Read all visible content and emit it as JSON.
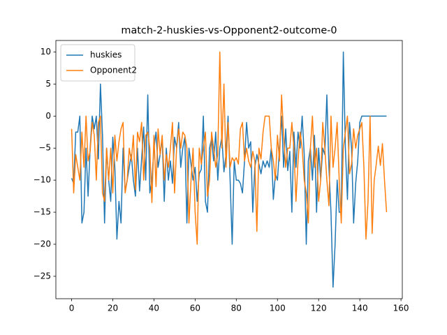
{
  "chart_data": {
    "type": "line",
    "title": "match-2-huskies-vs-Opponent2-outcome-0",
    "x": [
      0,
      1,
      2,
      3,
      4,
      5,
      6,
      7,
      8,
      9,
      10,
      11,
      12,
      13,
      14,
      15,
      16,
      17,
      18,
      19,
      20,
      21,
      22,
      23,
      24,
      25,
      26,
      27,
      28,
      29,
      30,
      31,
      32,
      33,
      34,
      35,
      36,
      37,
      38,
      39,
      40,
      41,
      42,
      43,
      44,
      45,
      46,
      47,
      48,
      49,
      50,
      51,
      52,
      53,
      54,
      55,
      56,
      57,
      58,
      59,
      60,
      61,
      62,
      63,
      64,
      65,
      66,
      67,
      68,
      69,
      70,
      71,
      72,
      73,
      74,
      75,
      76,
      77,
      78,
      79,
      80,
      81,
      82,
      83,
      84,
      85,
      86,
      87,
      88,
      89,
      90,
      91,
      92,
      93,
      94,
      95,
      96,
      97,
      98,
      99,
      100,
      101,
      102,
      103,
      104,
      105,
      106,
      107,
      108,
      109,
      110,
      111,
      112,
      113,
      114,
      115,
      116,
      117,
      118,
      119,
      120,
      121,
      122,
      123,
      124,
      125,
      126,
      127,
      128,
      129,
      130,
      131,
      132,
      133,
      134,
      135,
      136,
      137,
      138,
      139,
      140,
      141,
      142,
      143,
      144,
      145,
      146,
      147,
      148,
      149,
      150,
      151,
      152,
      153
    ],
    "series": [
      {
        "name": "huskies",
        "color": "#1f77b4",
        "values": [
          -9.7,
          -10.5,
          -2.5,
          -2.5,
          0,
          -16.7,
          -15,
          -5,
          -12.5,
          -5,
          0,
          -2,
          0,
          -6.7,
          5,
          -3,
          -16.7,
          -5,
          -10,
          -13.3,
          -3.3,
          -8,
          -19.2,
          -13.3,
          -16.7,
          -5,
          -11.7,
          -10,
          -8,
          -6,
          -10,
          -12.5,
          -5,
          -11.7,
          -6.7,
          -1.7,
          -10,
          3.3,
          -12,
          -10,
          -5,
          -2.5,
          -8,
          -6,
          -3.5,
          -13.3,
          -5,
          -10,
          -7,
          -10.5,
          -3.3,
          -5,
          -1,
          -8,
          -5,
          -3.3,
          -16.7,
          -5,
          -7.5,
          -10,
          -8,
          -13.3,
          -9,
          -8.3,
          0,
          -13.3,
          -15,
          -5,
          -3.5,
          -7,
          -2.5,
          -10,
          -5,
          -3.3,
          -8.7,
          -6,
          0,
          -10,
          -20,
          -7,
          -10,
          -10,
          -10.5,
          -12,
          -7,
          -1,
          -5,
          -4,
          -15,
          -8,
          -6,
          -7.5,
          -9,
          -7,
          -8,
          -7,
          -8,
          -5,
          -13,
          -9,
          -10,
          -5,
          0,
          -8,
          -2,
          -8.5,
          -5.5,
          -15,
          -2.5,
          -8,
          -2.5,
          -5,
          0,
          -6,
          -20,
          -7,
          -5,
          -10,
          -3,
          -15,
          -5,
          -10,
          -5,
          -6,
          3.3,
          -8,
          -15,
          -26.7,
          -20,
          -10,
          -15,
          -15,
          10,
          -5,
          -13,
          -1,
          -5,
          -16.7,
          -10.5,
          -7,
          -1,
          0,
          0,
          0,
          0,
          0,
          0,
          0,
          0,
          0,
          0,
          0,
          0,
          0
        ]
      },
      {
        "name": "Opponent2",
        "color": "#ff7f0e",
        "values": [
          -2,
          -12,
          -6,
          -8,
          -10,
          -2.5,
          -8,
          0,
          -7,
          -5.5,
          -1,
          -3,
          -10,
          -1,
          0,
          -12,
          -13.3,
          -5,
          -10,
          -5,
          -12,
          -3,
          -7,
          -4,
          -2,
          -1,
          -12,
          -10,
          -5,
          -7,
          -3,
          -11.5,
          -2.5,
          -4,
          -1,
          -10,
          -3,
          -2.5,
          -5,
          -13.5,
          -3,
          -11,
          -2,
          -6,
          -3,
          -10,
          -6,
          -8,
          -5,
          -1,
          -12,
          -5,
          -2,
          -5,
          -2.5,
          -3,
          -5,
          -16.7,
          -10,
          -5,
          -15,
          -20,
          -5,
          -7.5,
          -5,
          -2.5,
          -12.5,
          -10,
          -2.5,
          -5,
          -8,
          -6,
          10,
          -5,
          5,
          -8,
          -1,
          -8,
          -6.5,
          -7,
          -6.5,
          -7.5,
          -2,
          -1,
          -7,
          -5,
          -7,
          -8,
          -5.5,
          -7,
          -18,
          -5,
          -6.7,
          -2.5,
          0,
          0,
          0,
          -5,
          -7,
          -10,
          -3,
          -7,
          3.3,
          -3,
          -8,
          -5,
          -5,
          -1,
          -5,
          -13.3,
          -7,
          -2.5,
          -5,
          -10,
          -12,
          -16.7,
          -5,
          0,
          -8,
          -5,
          -13.3,
          -10,
          -1,
          -5,
          -10,
          -14,
          0,
          -8,
          -5,
          -1,
          -10,
          -16.7,
          -5,
          -2.5,
          0,
          -9,
          -7.5,
          -2,
          -5,
          -3,
          -2,
          -1,
          -8,
          -19.2,
          -13.3,
          0,
          -18.3,
          -10,
          -7.5,
          -4.7,
          -7.7,
          -4.3,
          -10,
          -15
        ]
      }
    ],
    "xlim": [
      -7.65,
      160.65
    ],
    "ylim": [
      -28.5,
      11.8
    ],
    "xticks": [
      0,
      20,
      40,
      60,
      80,
      100,
      120,
      140,
      160
    ],
    "yticks": [
      {
        "value": -25,
        "label": "−25"
      },
      {
        "value": -20,
        "label": "−20"
      },
      {
        "value": -15,
        "label": "−15"
      },
      {
        "value": -10,
        "label": "−10"
      },
      {
        "value": -5,
        "label": "−5"
      },
      0,
      5,
      10
    ],
    "legend": "upper left"
  }
}
